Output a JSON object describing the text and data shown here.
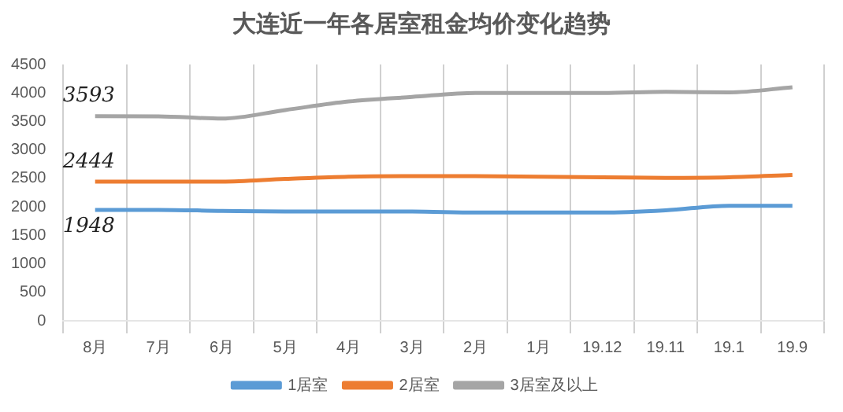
{
  "chart_data": {
    "type": "line",
    "title": "大连近一年各居室租金均价变化趋势",
    "categories": [
      "8月",
      "7月",
      "6月",
      "5月",
      "4月",
      "3月",
      "2月",
      "1月",
      "19.12",
      "19.11",
      "19.1",
      "19.9"
    ],
    "series": [
      {
        "name": "1居室",
        "color": "#5b9bd5",
        "values": [
          1948,
          1948,
          1930,
          1920,
          1920,
          1920,
          1900,
          1900,
          1900,
          1940,
          2020,
          2020
        ],
        "value_labels": [
          "1948",
          null,
          null,
          null,
          null,
          null,
          null,
          null,
          null,
          null,
          null,
          null
        ]
      },
      {
        "name": "2居室",
        "color": "#ed7d31",
        "values": [
          2444,
          2444,
          2444,
          2490,
          2530,
          2540,
          2540,
          2530,
          2520,
          2510,
          2520,
          2560
        ],
        "value_labels": [
          "2444",
          null,
          null,
          null,
          null,
          null,
          null,
          null,
          null,
          null,
          null,
          null
        ]
      },
      {
        "name": "3居室及以上",
        "color": "#a5a5a5",
        "values": [
          3593,
          3590,
          3550,
          3700,
          3850,
          3930,
          4000,
          4000,
          4000,
          4020,
          4010,
          4100
        ],
        "value_labels": [
          "3593",
          null,
          null,
          null,
          null,
          null,
          null,
          null,
          null,
          null,
          null,
          null
        ]
      }
    ],
    "ylim": [
      0,
      4500
    ],
    "yticks": [
      0,
      500,
      1000,
      1500,
      2000,
      2500,
      3000,
      3500,
      4000,
      4500
    ],
    "grid": "x",
    "legend": "bottom",
    "marker": "none",
    "line_style": "solid"
  }
}
